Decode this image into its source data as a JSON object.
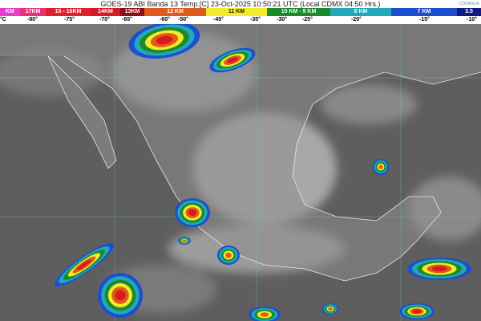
{
  "header": {
    "title": "GOES-19 ABI Banda 13 Temp.[C] 23-Oct-2025 10:50:21 UTC (Local CDMX  04:50 Hrs.)",
    "logo_text": "CONAGUA"
  },
  "scale": {
    "segments": [
      {
        "label": "KM",
        "color": "#e83ccf"
      },
      {
        "label": "17KM",
        "color": "#e8307a"
      },
      {
        "label": "15 - 16KM",
        "color": "#e0202c"
      },
      {
        "label": "14KM",
        "color": "#d81a22"
      },
      {
        "label": "13KM",
        "color": "#8a0f16"
      },
      {
        "label": "12 KM",
        "color": "#e05a1a"
      },
      {
        "label": "11 KM",
        "color": "#f2ea2a"
      },
      {
        "label": "10 KM - 9 KM",
        "color": "#1a8a2a"
      },
      {
        "label": "8 KM",
        "color": "#22a8b8"
      },
      {
        "label": "7 KM",
        "color": "#1d4fd0"
      },
      {
        "label": "3.5",
        "color": "#111a80"
      }
    ],
    "temps": [
      "°C",
      "-80°",
      "-75°",
      "-70°",
      "-65°",
      "-60°",
      "-50°",
      "-45°",
      "-35°",
      "-30°",
      "-25°",
      "-20°",
      "-15°",
      "-10°"
    ]
  }
}
